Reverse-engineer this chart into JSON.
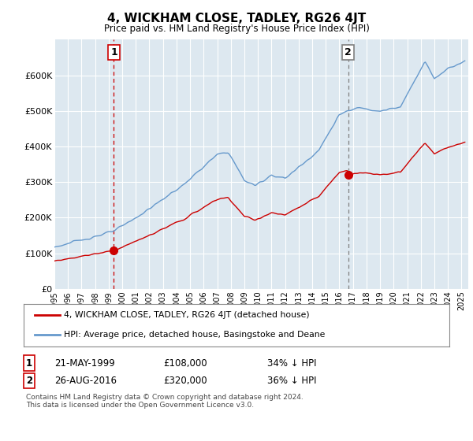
{
  "title": "4, WICKHAM CLOSE, TADLEY, RG26 4JT",
  "subtitle": "Price paid vs. HM Land Registry's House Price Index (HPI)",
  "legend_line1": "4, WICKHAM CLOSE, TADLEY, RG26 4JT (detached house)",
  "legend_line2": "HPI: Average price, detached house, Basingstoke and Deane",
  "annotation1_label": "1",
  "annotation1_date": "21-MAY-1999",
  "annotation1_price": "£108,000",
  "annotation1_hpi": "34% ↓ HPI",
  "annotation2_label": "2",
  "annotation2_date": "26-AUG-2016",
  "annotation2_price": "£320,000",
  "annotation2_hpi": "36% ↓ HPI",
  "footnote": "Contains HM Land Registry data © Crown copyright and database right 2024.\nThis data is licensed under the Open Government Licence v3.0.",
  "red_color": "#cc0000",
  "blue_color": "#6699cc",
  "plot_bg_color": "#dde8f0",
  "vline1_color": "#cc0000",
  "vline2_color": "#808080",
  "grid_color": "#ffffff",
  "bg_color": "#ffffff",
  "ylim": [
    0,
    700000
  ],
  "yticks": [
    0,
    100000,
    200000,
    300000,
    400000,
    500000,
    600000
  ],
  "ytick_labels": [
    "£0",
    "£100K",
    "£200K",
    "£300K",
    "£400K",
    "£500K",
    "£600K"
  ],
  "xstart_year": 1995,
  "xend_year": 2025,
  "t1": 1999.384,
  "t2": 2016.652,
  "sale1_price": 108000,
  "sale2_price": 320000
}
